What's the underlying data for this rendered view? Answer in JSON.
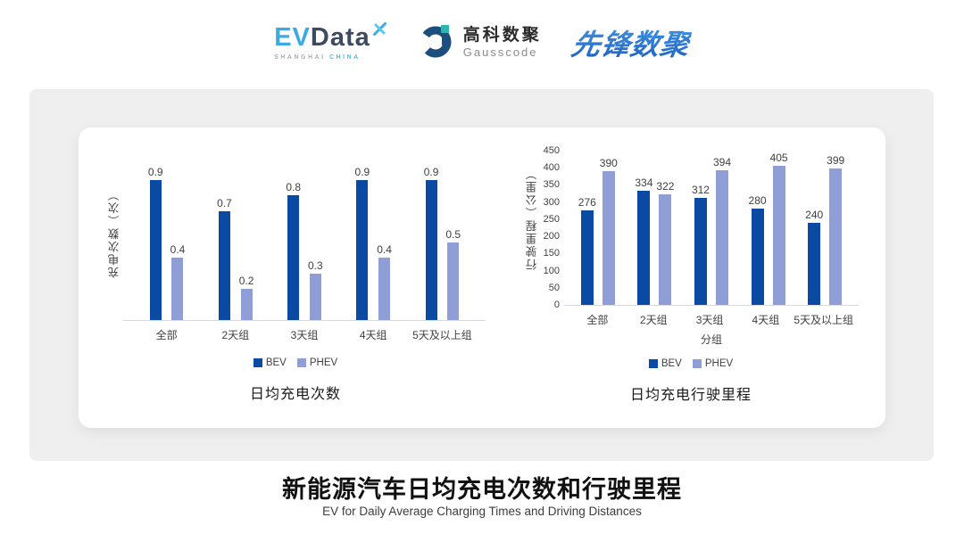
{
  "header": {
    "evdata_logo": {
      "part1": "EV",
      "part2": "Data",
      "tagline_left": "SHANGHAI",
      "tagline_right": "CHINA"
    },
    "gausscode_logo": {
      "name_cn": "高科数聚",
      "name_en": "Gausscode"
    },
    "pioneer_logo": {
      "text": "先锋数聚"
    }
  },
  "chart_data": [
    {
      "type": "bar",
      "title": "日均充电次数",
      "ylabel": "充电次数（次）",
      "xlabel": "",
      "categories": [
        "全部",
        "2天组",
        "3天组",
        "4天组",
        "5天及以上组"
      ],
      "series": [
        {
          "name": "BEV",
          "values": [
            0.9,
            0.7,
            0.8,
            0.9,
            0.9
          ]
        },
        {
          "name": "PHEV",
          "values": [
            0.4,
            0.2,
            0.3,
            0.4,
            0.5
          ]
        }
      ],
      "ylim": [
        0,
        1.0
      ],
      "yticks": null,
      "grid": false,
      "legend_position": "bottom",
      "data_labels": true
    },
    {
      "type": "bar",
      "title": "日均充电行驶里程",
      "ylabel": "行驶里程（公里）",
      "xlabel": "分组",
      "categories": [
        "全部",
        "2天组",
        "3天组",
        "4天组",
        "5天及以上组"
      ],
      "series": [
        {
          "name": "BEV",
          "values": [
            276,
            334,
            312,
            280,
            240
          ]
        },
        {
          "name": "PHEV",
          "values": [
            390,
            322,
            394,
            405,
            399
          ]
        }
      ],
      "ylim": [
        0,
        450
      ],
      "yticks": [
        0,
        50,
        100,
        150,
        200,
        250,
        300,
        350,
        400,
        450
      ],
      "grid": false,
      "legend_position": "bottom",
      "data_labels": true
    }
  ],
  "footer": {
    "title": "新能源汽车日均充电次数和行驶里程",
    "subtitle": "EV for Daily Average Charging Times and Driving Distances"
  },
  "colors": {
    "bev": "#0B4AA2",
    "phev": "#8F9ED6",
    "panel_bg": "#EFEFEF",
    "axis_line": "#D9D9D9",
    "label_text": "#3F3F3F",
    "evdata_blue": "#3BABE2",
    "evdata_dark": "#3E4B5C",
    "evdata_tag_gray": "#A9AFB5",
    "evdata_tag_cyan": "#49C3EA",
    "gausscode_navy": "#1C4E7E",
    "gausscode_teal": "#2FB5AF",
    "pioneer_blue": "#2B7FD6",
    "footer_title": "#111111",
    "footer_subtitle": "#3C3C3C"
  }
}
